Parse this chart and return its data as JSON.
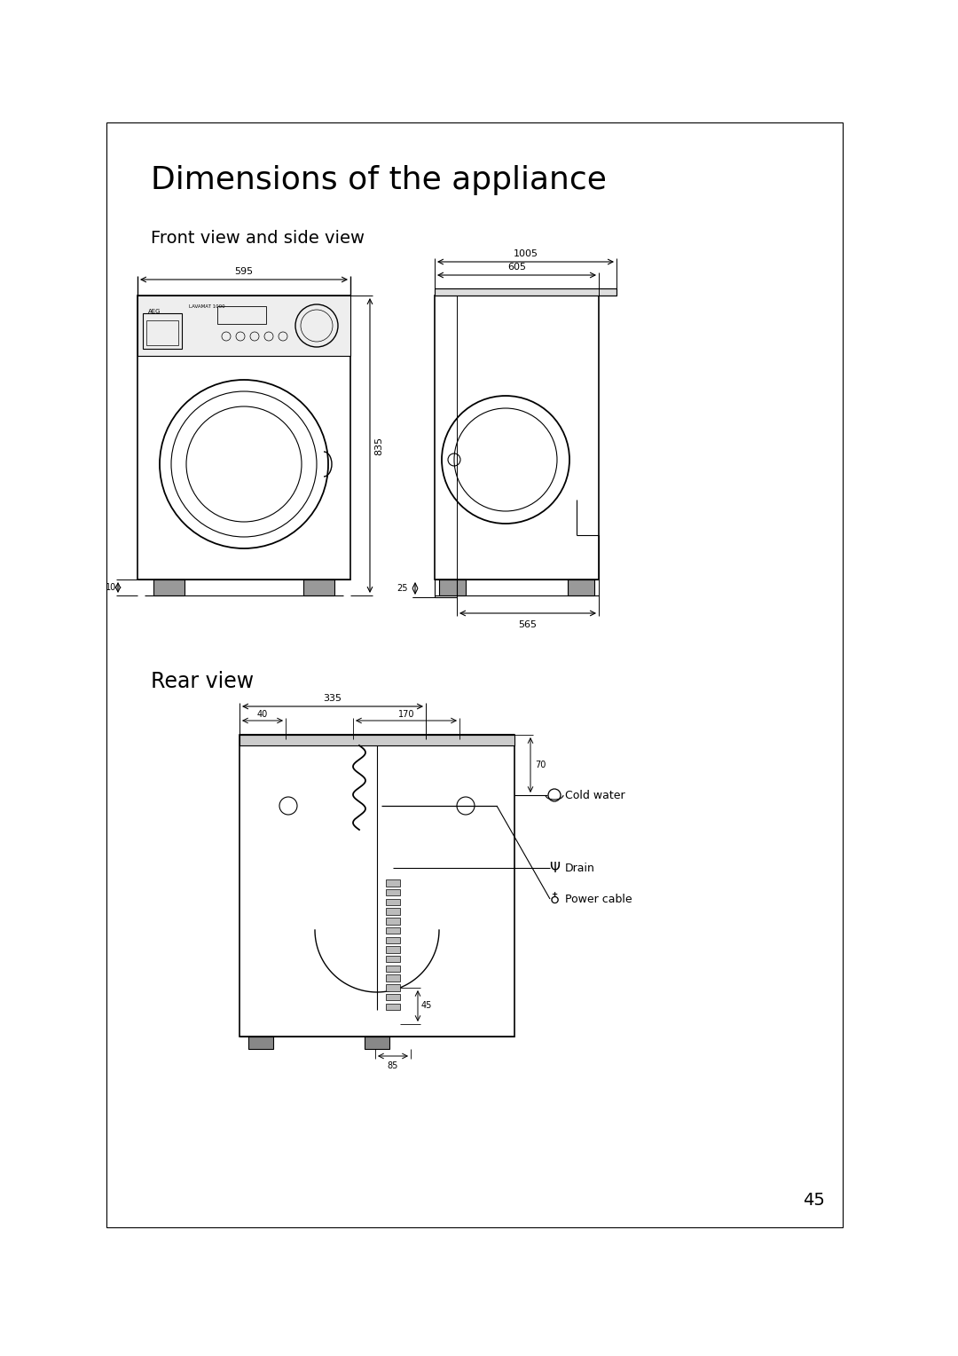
{
  "title": "Dimensions of the appliance",
  "subtitle1": "Front view and side view",
  "subtitle2": "Rear view",
  "page_number": "45",
  "bg_color": "#ffffff",
  "line_color": "#000000",
  "front_view": {
    "width_label": "595",
    "height_label": "835",
    "foot_label": "10"
  },
  "side_view": {
    "depth_top_label": "1005",
    "depth_body_label": "605",
    "foot_label": "25",
    "bottom_label": "565"
  },
  "rear_view": {
    "dim_335": "335",
    "dim_40": "40",
    "dim_170": "170",
    "dim_70": "70",
    "dim_45": "45",
    "dim_85": "85",
    "cold_water_label": "Cold water",
    "power_cable_label": "Power cable",
    "drain_label": "Drain"
  }
}
